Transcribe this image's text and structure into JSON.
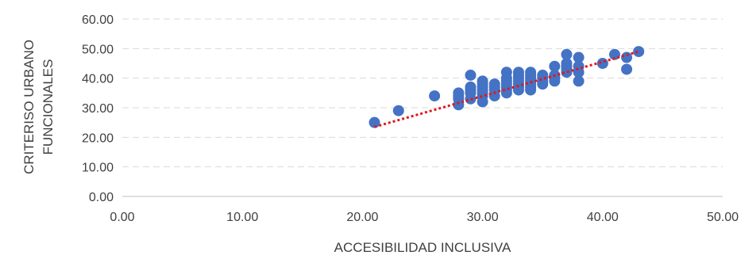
{
  "chart_data": {
    "type": "scatter",
    "title": "",
    "xlabel": "ACCESIBILIDAD INCLUSIVA",
    "ylabel_lines": [
      "CRITERISO URBANO",
      "FUNCIONALES"
    ],
    "xlim": [
      0,
      50
    ],
    "ylim": [
      0,
      60
    ],
    "x_ticks": [
      "0.00",
      "10.00",
      "20.00",
      "30.00",
      "40.00",
      "50.00"
    ],
    "y_ticks": [
      "0.00",
      "10.00",
      "20.00",
      "30.00",
      "40.00",
      "50.00",
      "60.00"
    ],
    "grid": "horizontal dashed",
    "legend": "none",
    "marker_color": "#4472C4",
    "trendline": {
      "type": "linear",
      "color": "#E0191C",
      "style": "dotted",
      "x_range": [
        21,
        43
      ],
      "y_range": [
        23.5,
        49
      ]
    },
    "series": [
      {
        "points": [
          [
            21,
            25
          ],
          [
            23,
            29
          ],
          [
            26,
            34
          ],
          [
            28,
            31
          ],
          [
            28,
            33
          ],
          [
            28,
            34
          ],
          [
            28,
            35
          ],
          [
            29,
            33
          ],
          [
            29,
            35
          ],
          [
            29,
            36
          ],
          [
            29,
            37
          ],
          [
            29,
            41
          ],
          [
            30,
            32
          ],
          [
            30,
            34
          ],
          [
            30,
            35
          ],
          [
            30,
            36
          ],
          [
            30,
            37
          ],
          [
            30,
            38
          ],
          [
            30,
            39
          ],
          [
            31,
            34
          ],
          [
            31,
            36
          ],
          [
            31,
            37
          ],
          [
            31,
            38
          ],
          [
            32,
            35
          ],
          [
            32,
            36
          ],
          [
            32,
            37
          ],
          [
            32,
            38
          ],
          [
            32,
            39
          ],
          [
            32,
            40
          ],
          [
            32,
            42
          ],
          [
            33,
            36
          ],
          [
            33,
            37
          ],
          [
            33,
            38
          ],
          [
            33,
            39
          ],
          [
            33,
            40
          ],
          [
            33,
            41
          ],
          [
            33,
            42
          ],
          [
            34,
            36
          ],
          [
            34,
            37
          ],
          [
            34,
            38
          ],
          [
            34,
            39
          ],
          [
            34,
            40
          ],
          [
            34,
            41
          ],
          [
            34,
            42
          ],
          [
            35,
            38
          ],
          [
            35,
            39
          ],
          [
            35,
            40
          ],
          [
            35,
            41
          ],
          [
            36,
            39
          ],
          [
            36,
            40
          ],
          [
            36,
            41
          ],
          [
            36,
            44
          ],
          [
            37,
            42
          ],
          [
            37,
            43
          ],
          [
            37,
            44
          ],
          [
            37,
            45
          ],
          [
            37,
            48
          ],
          [
            38,
            39
          ],
          [
            38,
            42
          ],
          [
            38,
            44
          ],
          [
            38,
            47
          ],
          [
            40,
            45
          ],
          [
            41,
            48
          ],
          [
            42,
            43
          ],
          [
            42,
            47
          ],
          [
            43,
            49
          ]
        ]
      }
    ]
  }
}
